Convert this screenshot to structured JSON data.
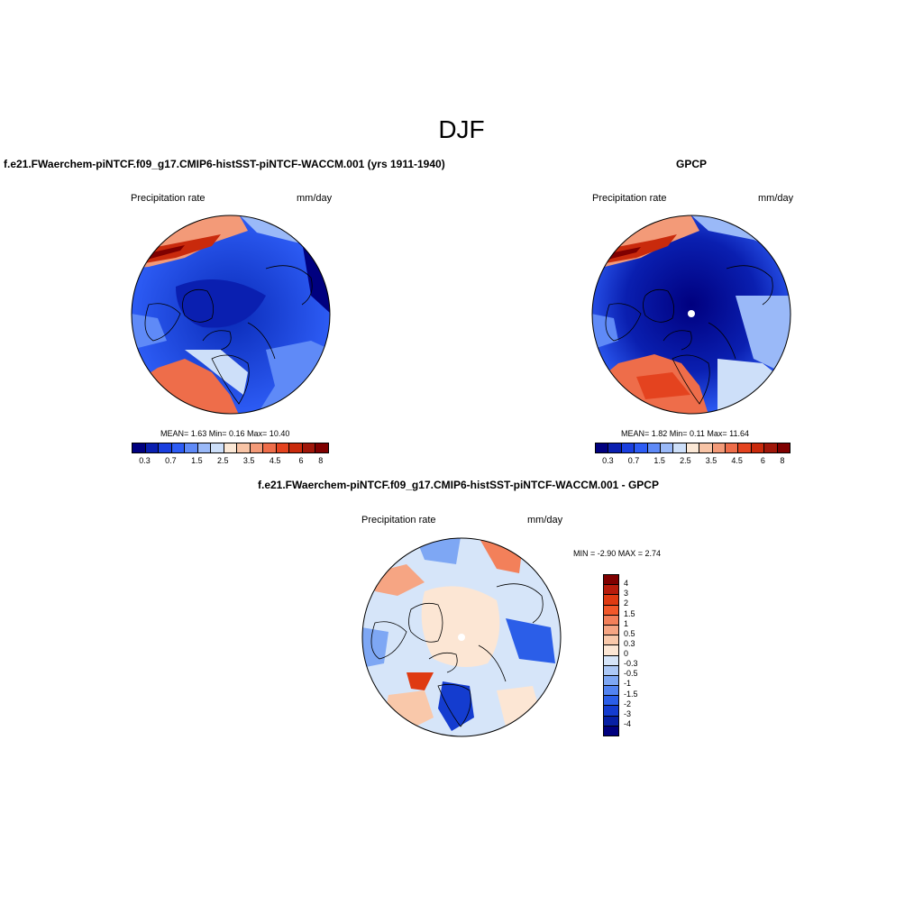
{
  "season": "DJF",
  "panels": {
    "model": {
      "title": "f.e21.FWaerchem-piNTCF.f09_g17.CMIP6-histSST-piNTCF-WACCM.001 (yrs 1911-1940)",
      "left_label": "Precipitation rate",
      "right_label": "mm/day",
      "stats": "MEAN=   1.63   Min=   0.16   Max=  10.40"
    },
    "obs": {
      "title": "GPCP",
      "left_label": "Precipitation rate",
      "right_label": "mm/day",
      "stats": "MEAN=   1.82   Min=   0.11   Max=  11.64"
    },
    "diff": {
      "title": "f.e21.FWaerchem-piNTCF.f09_g17.CMIP6-histSST-piNTCF-WACCM.001 - GPCP",
      "left_label": "Precipitation rate",
      "right_label": "mm/day",
      "stats": "MIN =  -2.90 MAX =   2.74"
    }
  },
  "chart_data": [
    {
      "type": "heatmap",
      "projection": "north polar stereographic",
      "variable": "Precipitation rate",
      "units": "mm/day",
      "mean": 1.63,
      "min": 0.16,
      "max": 10.4,
      "colorbar_ticks": [
        "0.3",
        "0.7",
        "1.5",
        "2.5",
        "3.5",
        "4.5",
        "6",
        "8"
      ],
      "colors": [
        "#00007f",
        "#0a1fb0",
        "#1a3fdf",
        "#2d5cf5",
        "#5f8af7",
        "#9ab9f8",
        "#cddff9",
        "#fbe8d6",
        "#f8c4a6",
        "#f39a78",
        "#ee6d4a",
        "#e4431f",
        "#c92a0c",
        "#a0170a",
        "#7f0000"
      ]
    },
    {
      "type": "heatmap",
      "projection": "north polar stereographic",
      "variable": "Precipitation rate",
      "units": "mm/day",
      "mean": 1.82,
      "min": 0.11,
      "max": 11.64,
      "colorbar_ticks": [
        "0.3",
        "0.7",
        "1.5",
        "2.5",
        "3.5",
        "4.5",
        "6",
        "8"
      ],
      "colors": [
        "#00007f",
        "#0a1fb0",
        "#1a3fdf",
        "#2d5cf5",
        "#5f8af7",
        "#9ab9f8",
        "#cddff9",
        "#fbe8d6",
        "#f8c4a6",
        "#f39a78",
        "#ee6d4a",
        "#e4431f",
        "#c92a0c",
        "#a0170a",
        "#7f0000"
      ]
    },
    {
      "type": "heatmap",
      "projection": "north polar stereographic",
      "variable": "Precipitation rate",
      "units": "mm/day",
      "min": -2.9,
      "max": 2.74,
      "colorbar_ticks": [
        "4",
        "3",
        "2",
        "1.5",
        "1",
        "0.5",
        "0.3",
        "0",
        "-0.3",
        "-0.5",
        "-1",
        "-1.5",
        "-2",
        "-3",
        "-4"
      ],
      "colors": [
        "#7f0000",
        "#b71c0c",
        "#df3a12",
        "#f2582a",
        "#f3805a",
        "#f6a583",
        "#f9c8aa",
        "#fce6d4",
        "#d6e5f9",
        "#acc8f6",
        "#7ea7f4",
        "#5283f1",
        "#2b5ee8",
        "#143ccf",
        "#0720a5",
        "#00007f"
      ]
    }
  ]
}
